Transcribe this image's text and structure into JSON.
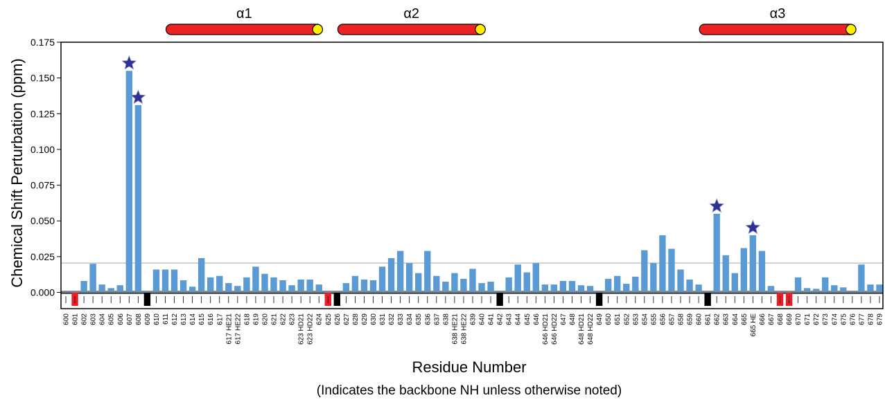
{
  "chart_data": {
    "type": "bar",
    "ylabel": "Chemical Shift Perturbation (ppm)",
    "xlabel": "Residue Number",
    "note": "(Indicates the backbone NH unless otherwise noted)",
    "ylim": [
      0,
      0.175
    ],
    "yticks": [
      "0.000",
      "0.025",
      "0.050",
      "0.075",
      "0.100",
      "0.125",
      "0.150",
      "0.175"
    ],
    "threshold": 0.0205,
    "helices": [
      {
        "label": "α1",
        "start": 612,
        "end": 624
      },
      {
        "label": "α2",
        "start": 627,
        "end": 640
      },
      {
        "label": "α3",
        "start": 661,
        "end": 676
      }
    ],
    "colors": {
      "bar": "#5b9bd5",
      "helix": "#ee2222",
      "helix_cap": "#ffee00",
      "star": "#2e3192",
      "marker_red": "#ee1c24",
      "marker_black": "#000000"
    },
    "categories": [
      "600",
      "601",
      "602",
      "603",
      "604",
      "605",
      "606",
      "607",
      "608",
      "609",
      "610",
      "611",
      "612",
      "613",
      "614",
      "615",
      "616",
      "617",
      "617 HE21",
      "617 HE22",
      "618",
      "619",
      "620",
      "621",
      "622",
      "623",
      "623 HD21",
      "623 HD22",
      "624",
      "625",
      "626",
      "627",
      "628",
      "629",
      "630",
      "631",
      "632",
      "633",
      "634",
      "635",
      "636",
      "637",
      "638",
      "638 HE21",
      "638 HE22",
      "639",
      "640",
      "641",
      "642",
      "643",
      "644",
      "645",
      "646",
      "646 HD21",
      "646 HD22",
      "647",
      "648",
      "648 HD21",
      "648 HD22",
      "649",
      "650",
      "651",
      "652",
      "653",
      "654",
      "655",
      "656",
      "657",
      "658",
      "659",
      "660",
      "661",
      "662",
      "663",
      "664",
      "665",
      "665 HE",
      "666",
      "667",
      "668",
      "669",
      "670",
      "671",
      "672",
      "673",
      "674",
      "675",
      "676",
      "677",
      "678",
      "679"
    ],
    "values": [
      0,
      0,
      0.008,
      0.02,
      0.0055,
      0.003,
      0.005,
      0.155,
      0.131,
      0,
      0.016,
      0.016,
      0.016,
      0.0085,
      0.004,
      0.024,
      0.0105,
      0.0115,
      0.0065,
      0.0045,
      0.0105,
      0.018,
      0.013,
      0.0105,
      0.0085,
      0.005,
      0.009,
      0.009,
      0.0055,
      0,
      0,
      0.0065,
      0.0115,
      0.009,
      0.0085,
      0.018,
      0.024,
      0.029,
      0.0205,
      0.0135,
      0.029,
      0.0115,
      0.0075,
      0.0135,
      0.0095,
      0.0165,
      0.0065,
      0.0075,
      0,
      0.0105,
      0.0195,
      0.014,
      0.0205,
      0.0055,
      0.0055,
      0.008,
      0.008,
      0.005,
      0.0045,
      0,
      0.0095,
      0.0115,
      0.006,
      0.011,
      0.0295,
      0.0205,
      0.04,
      0.0305,
      0.016,
      0.009,
      0.0055,
      0,
      0.055,
      0.026,
      0.0135,
      0.031,
      0.04,
      0.029,
      0.0045,
      0,
      0,
      0.0105,
      0.003,
      0.0025,
      0.0105,
      0.005,
      0.0035,
      0,
      0.0195,
      0.0055,
      0.0055
    ],
    "stars": [
      "607",
      "608",
      "662",
      "665 HE"
    ],
    "red_markers": [
      "601",
      "625",
      "668",
      "669"
    ],
    "black_markers": [
      "609",
      "626",
      "642",
      "649",
      "661"
    ]
  }
}
